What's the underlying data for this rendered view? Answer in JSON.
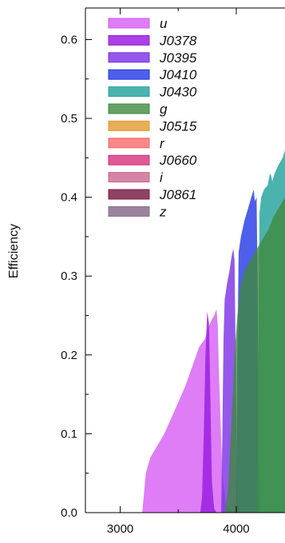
{
  "chart_data": {
    "type": "area",
    "title": "",
    "xlabel": "",
    "ylabel": "Efficiency",
    "xlim": [
      2700,
      4420
    ],
    "ylim": [
      0,
      0.64
    ],
    "xticks": [
      3000,
      4000
    ],
    "xtick_labels": [
      "3000",
      "4000"
    ],
    "yticks": [
      0,
      0.1,
      0.2,
      0.3,
      0.4,
      0.5,
      0.6
    ],
    "ytick_labels": [
      "0.0",
      "0.1",
      "0.2",
      "0.3",
      "0.4",
      "0.5",
      "0.6"
    ],
    "grid": false,
    "legend_position": "top-left",
    "series": [
      {
        "name": "u",
        "color": "#d65cf2",
        "opacity": 0.8,
        "x": [
          3190,
          3220,
          3260,
          3320,
          3380,
          3440,
          3500,
          3560,
          3620,
          3680,
          3730,
          3760,
          3790,
          3810,
          3830,
          3840,
          3850,
          3880,
          3910,
          3950,
          4000,
          4050
        ],
        "y": [
          0,
          0.05,
          0.07,
          0.085,
          0.1,
          0.12,
          0.14,
          0.16,
          0.185,
          0.21,
          0.22,
          0.235,
          0.245,
          0.25,
          0.258,
          0.24,
          0.18,
          0.05,
          0.01,
          0.003,
          0.001,
          0
        ]
      },
      {
        "name": "J0378",
        "color": "#9b20e0",
        "opacity": 0.85,
        "x": [
          3690,
          3705,
          3720,
          3735,
          3750,
          3765,
          3775,
          3790,
          3810,
          3830
        ],
        "y": [
          0,
          0.02,
          0.1,
          0.2,
          0.255,
          0.24,
          0.16,
          0.04,
          0.005,
          0
        ]
      },
      {
        "name": "J0395",
        "color": "#7a2ee6",
        "opacity": 0.8,
        "x": [
          3870,
          3880,
          3890,
          3900,
          3920,
          3940,
          3960,
          3975,
          3985,
          3995,
          4005,
          4015,
          4030
        ],
        "y": [
          0,
          0.1,
          0.22,
          0.27,
          0.29,
          0.305,
          0.325,
          0.335,
          0.32,
          0.2,
          0.06,
          0.01,
          0
        ]
      },
      {
        "name": "J0410",
        "color": "#2137e6",
        "opacity": 0.8,
        "x": [
          4000,
          4010,
          4020,
          4040,
          4070,
          4100,
          4130,
          4150,
          4160,
          4175,
          4185,
          4195,
          4205
        ],
        "y": [
          0,
          0.2,
          0.33,
          0.35,
          0.37,
          0.385,
          0.4,
          0.41,
          0.395,
          0.4,
          0.28,
          0.05,
          0
        ]
      },
      {
        "name": "J0430",
        "color": "#2aa6a0",
        "opacity": 0.85,
        "x": [
          4180,
          4190,
          4200,
          4215,
          4240,
          4270,
          4290,
          4300,
          4310,
          4330,
          4360,
          4400,
          4420
        ],
        "y": [
          0,
          0.2,
          0.38,
          0.4,
          0.41,
          0.415,
          0.43,
          0.428,
          0.42,
          0.43,
          0.44,
          0.45,
          0.46
        ]
      },
      {
        "name": "g",
        "color": "#3e8a3e",
        "opacity": 0.8,
        "x": [
          3900,
          3930,
          3960,
          3990,
          4010,
          4040,
          4080,
          4120,
          4160,
          4200,
          4240,
          4280,
          4320,
          4360,
          4400,
          4420
        ],
        "y": [
          0,
          0.03,
          0.12,
          0.21,
          0.25,
          0.29,
          0.31,
          0.32,
          0.33,
          0.34,
          0.35,
          0.36,
          0.375,
          0.385,
          0.395,
          0.4
        ]
      },
      {
        "name": "J0515",
        "color": "#e29a2e",
        "opacity": 0.8,
        "x": [],
        "y": []
      },
      {
        "name": "r",
        "color": "#f76a6a",
        "opacity": 0.8,
        "x": [],
        "y": []
      },
      {
        "name": "J0660",
        "color": "#d62f7c",
        "opacity": 0.8,
        "x": [],
        "y": []
      },
      {
        "name": "i",
        "color": "#c9678e",
        "opacity": 0.8,
        "x": [],
        "y": []
      },
      {
        "name": "J0861",
        "color": "#7b2147",
        "opacity": 0.85,
        "x": [],
        "y": []
      },
      {
        "name": "z",
        "color": "#8a6d8c",
        "opacity": 0.85,
        "x": [],
        "y": []
      }
    ]
  }
}
